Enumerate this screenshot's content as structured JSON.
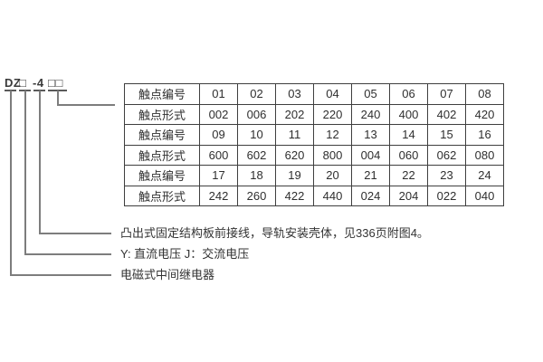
{
  "model": {
    "full": "DZ□-4□□",
    "prefix": "DZ",
    "voltage_box": "□",
    "middle": "-4",
    "contact_boxes": "□□"
  },
  "table": {
    "rows": [
      {
        "header": "触点编号",
        "cells": [
          "01",
          "02",
          "03",
          "04",
          "05",
          "06",
          "07",
          "08"
        ]
      },
      {
        "header": "触点形式",
        "cells": [
          "002",
          "006",
          "202",
          "220",
          "240",
          "400",
          "402",
          "420"
        ]
      },
      {
        "header": "触点编号",
        "cells": [
          "09",
          "10",
          "11",
          "12",
          "13",
          "14",
          "15",
          "16"
        ]
      },
      {
        "header": "触点形式",
        "cells": [
          "600",
          "602",
          "620",
          "800",
          "004",
          "060",
          "062",
          "080"
        ]
      },
      {
        "header": "触点编号",
        "cells": [
          "17",
          "18",
          "19",
          "20",
          "21",
          "22",
          "23",
          "24"
        ]
      },
      {
        "header": "触点形式",
        "cells": [
          "242",
          "260",
          "422",
          "440",
          "024",
          "204",
          "022",
          "040"
        ]
      }
    ]
  },
  "annotations": [
    {
      "label": "凸出式固定结构板前接线，导轨安装壳体，见336页附图4。"
    },
    {
      "label": "Y: 直流电压  J：交流电压"
    },
    {
      "label": "电磁式中间继电器"
    }
  ],
  "colors": {
    "background": "#ffffff",
    "connector_line": "#7d7d7d",
    "underline": "#5a5a5a",
    "table_border": "#3f3f3f",
    "text": "#333333"
  }
}
